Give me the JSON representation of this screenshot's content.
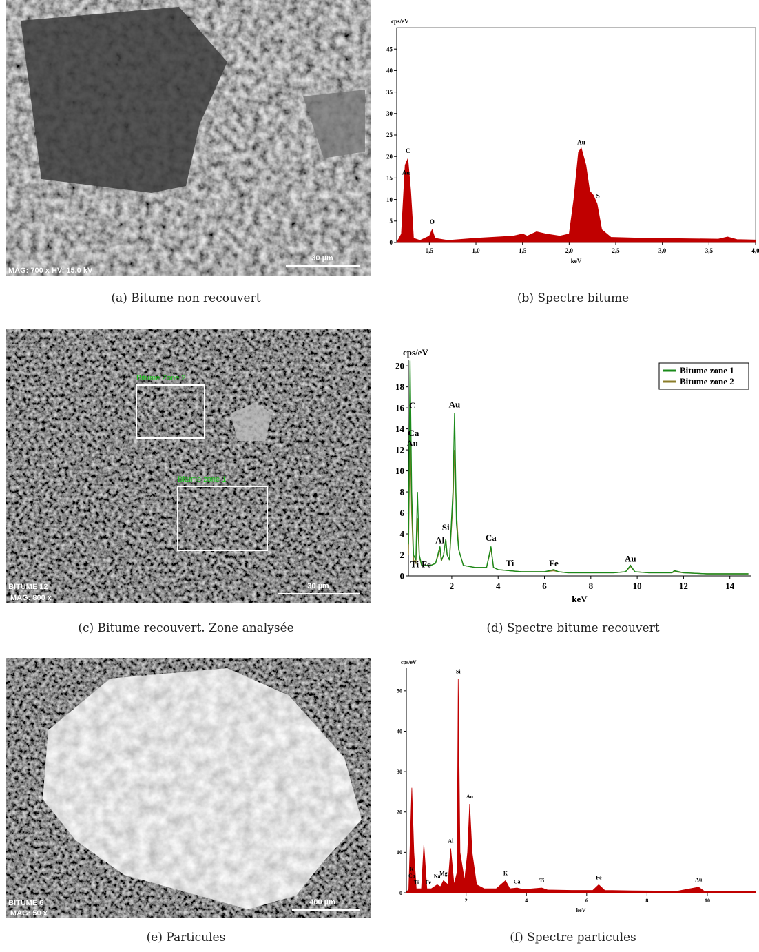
{
  "panels": [
    {
      "caption": "(a) Bitume non recouvert",
      "image_labels": [
        "MAG: 700 x  HV: 15.0 kV",
        "30 µm"
      ]
    },
    {
      "caption": "(b) Spectre bitume"
    },
    {
      "caption": "(c) Bitume recouvert. Zone analysée",
      "image_labels": [
        "BITUME 12",
        "MAG: 800 x",
        "30 µm",
        "Bitume Zone 2",
        "Bitume zone 1"
      ]
    },
    {
      "caption": "(d) Spectre bitume recouvert"
    },
    {
      "caption": "(e) Particules",
      "image_labels": [
        "BITUME 6",
        "MAG: 50 x",
        "400 µm"
      ]
    },
    {
      "caption": "(f) Spectre particules"
    }
  ],
  "chart_data": [
    {
      "type": "area",
      "x_label": "keV",
      "y_label": "cps/eV",
      "color": "#c00000",
      "x": [
        0.15,
        0.2,
        0.24,
        0.27,
        0.3,
        0.33,
        0.4,
        0.5,
        0.53,
        0.56,
        0.7,
        1.0,
        1.4,
        1.5,
        1.55,
        1.65,
        1.75,
        1.9,
        2.0,
        2.05,
        2.1,
        2.13,
        2.18,
        2.22,
        2.26,
        2.3,
        2.35,
        2.45,
        2.8,
        3.6,
        3.7,
        3.8,
        4.0
      ],
      "values": [
        0,
        2,
        18,
        19.5,
        12,
        1,
        0.5,
        1.5,
        3,
        1,
        0.5,
        1,
        1.5,
        2,
        1.5,
        2.5,
        2,
        1.5,
        2,
        10,
        21,
        22,
        18,
        12,
        11,
        9,
        3,
        1.2,
        1,
        0.8,
        1.3,
        0.7,
        0.6
      ],
      "xlim": [
        0.15,
        4.0
      ],
      "xticks": [
        {
          "value": 0.5,
          "label": "0,5"
        },
        {
          "value": 1.0,
          "label": "1,0"
        },
        {
          "value": 1.5,
          "label": "1,5"
        },
        {
          "value": 2.0,
          "label": "2,0"
        },
        {
          "value": 2.5,
          "label": "2,5"
        },
        {
          "value": 3.0,
          "label": "3,0"
        },
        {
          "value": 3.5,
          "label": "3,5"
        },
        {
          "value": 4.0,
          "label": "4,0"
        }
      ],
      "ylim": [
        0,
        50
      ],
      "yticks": [
        0,
        5,
        10,
        15,
        20,
        25,
        30,
        35,
        40,
        45
      ],
      "annotations": [
        {
          "text": "C",
          "x": 0.27,
          "y": 20.5
        },
        {
          "text": "Au",
          "x": 0.25,
          "y": 15.5
        },
        {
          "text": "O",
          "x": 0.53,
          "y": 4
        },
        {
          "text": "Au",
          "x": 2.13,
          "y": 22.5
        },
        {
          "text": "S",
          "x": 2.31,
          "y": 10
        }
      ]
    },
    {
      "type": "line",
      "x_label": "keV",
      "y_label": "cps/eV",
      "legend": "upper right",
      "x": [
        0.13,
        0.2,
        0.27,
        0.35,
        0.45,
        0.52,
        0.6,
        0.7,
        0.9,
        1.1,
        1.3,
        1.49,
        1.55,
        1.65,
        1.74,
        1.8,
        1.9,
        2.05,
        2.12,
        2.2,
        2.3,
        2.5,
        3.0,
        3.5,
        3.69,
        3.8,
        4.0,
        4.5,
        5.0,
        6.0,
        6.4,
        6.6,
        7,
        8,
        9,
        9.5,
        9.71,
        9.9,
        10.5,
        11.5,
        11.6,
        12,
        13,
        14,
        14.8
      ],
      "series": [
        {
          "name": "Bitume zone 1",
          "color": "#1a8a1a",
          "values": [
            3,
            20.5,
            8,
            2,
            1.5,
            8,
            2,
            1,
            1,
            1,
            1.2,
            2.8,
            1.5,
            2,
            3.5,
            2,
            1.5,
            8,
            15.5,
            5,
            2.5,
            1,
            0.8,
            0.8,
            2.8,
            0.8,
            0.6,
            0.5,
            0.4,
            0.4,
            0.6,
            0.4,
            0.3,
            0.3,
            0.3,
            0.4,
            1,
            0.4,
            0.3,
            0.3,
            0.5,
            0.3,
            0.2,
            0.2,
            0.2
          ]
        },
        {
          "name": "Bitume zone 2",
          "color": "#8b7d2a",
          "values": [
            2,
            14.5,
            6,
            1.5,
            1.2,
            5.5,
            1.8,
            1,
            1,
            1,
            1.2,
            2.5,
            1.4,
            2,
            3.5,
            2,
            1.5,
            7,
            12,
            6,
            2.5,
            1,
            0.8,
            0.8,
            2.6,
            0.8,
            0.6,
            0.5,
            0.4,
            0.4,
            0.5,
            0.4,
            0.3,
            0.3,
            0.3,
            0.4,
            0.9,
            0.4,
            0.3,
            0.3,
            0.4,
            0.3,
            0.2,
            0.2,
            0.2
          ]
        }
      ],
      "xlim": [
        0.13,
        14.9
      ],
      "xticks": [
        2,
        4,
        6,
        8,
        10,
        12,
        14
      ],
      "ylim": [
        0,
        20.6
      ],
      "yticks": [
        0,
        2,
        4,
        6,
        8,
        10,
        12,
        14,
        16,
        18,
        20
      ],
      "annotations": [
        {
          "text": "C",
          "x": 0.3,
          "y": 15.8
        },
        {
          "text": "Ca",
          "x": 0.35,
          "y": 13.2
        },
        {
          "text": "Au",
          "x": 0.3,
          "y": 12.2
        },
        {
          "text": "Au",
          "x": 2.12,
          "y": 15.9
        },
        {
          "text": "Si",
          "x": 1.74,
          "y": 4.2
        },
        {
          "text": "Al",
          "x": 1.49,
          "y": 3
        },
        {
          "text": "Ca",
          "x": 3.69,
          "y": 3.2
        },
        {
          "text": "Ti",
          "x": 4.51,
          "y": 0.8
        },
        {
          "text": "Fe",
          "x": 6.4,
          "y": 0.8
        },
        {
          "text": "Au",
          "x": 9.71,
          "y": 1.2
        },
        {
          "text": "Ti",
          "x": 0.4,
          "y": 0.7
        },
        {
          "text": "Fe",
          "x": 0.9,
          "y": 0.7
        }
      ]
    },
    {
      "type": "area",
      "x_label": "keV",
      "y_label": "cps/eV",
      "color": "#c00000",
      "x": [
        0.02,
        0.1,
        0.2,
        0.27,
        0.35,
        0.45,
        0.52,
        0.6,
        0.7,
        0.85,
        1.04,
        1.15,
        1.25,
        1.4,
        1.49,
        1.6,
        1.7,
        1.74,
        1.8,
        1.95,
        2.05,
        2.12,
        2.2,
        2.35,
        2.6,
        3.0,
        3.31,
        3.45,
        3.69,
        3.9,
        4.51,
        4.7,
        5.5,
        6.2,
        6.4,
        6.6,
        7.5,
        9.0,
        9.71,
        9.9,
        11.6
      ],
      "values": [
        0,
        1,
        26,
        10,
        1,
        1,
        1,
        12,
        1,
        1,
        2,
        1.5,
        3,
        2,
        11,
        2,
        5,
        53,
        10,
        3,
        10,
        22,
        10,
        2,
        1,
        1,
        3,
        1,
        1.2,
        0.8,
        1.2,
        0.7,
        0.6,
        0.6,
        2,
        0.6,
        0.5,
        0.4,
        1.4,
        0.4,
        0.3
      ],
      "xlim": [
        0.02,
        11.6
      ],
      "xticks": [
        2,
        4,
        6,
        8,
        10
      ],
      "ylim": [
        0,
        55.6
      ],
      "yticks": [
        0,
        10,
        20,
        30,
        40,
        50
      ],
      "annotations": [
        {
          "text": "Si",
          "x": 1.74,
          "y": 54
        },
        {
          "text": "Au",
          "x": 2.12,
          "y": 23
        },
        {
          "text": "Al",
          "x": 1.49,
          "y": 12
        },
        {
          "text": "Mg",
          "x": 1.25,
          "y": 4
        },
        {
          "text": "Na",
          "x": 1.04,
          "y": 3.3
        },
        {
          "text": "Fe",
          "x": 0.75,
          "y": 1.8
        },
        {
          "text": "K",
          "x": 0.2,
          "y": 5
        },
        {
          "text": "Ca",
          "x": 0.2,
          "y": 3.4
        },
        {
          "text": "Ti",
          "x": 0.35,
          "y": 1.8
        },
        {
          "text": "K",
          "x": 3.31,
          "y": 4
        },
        {
          "text": "Ca",
          "x": 3.69,
          "y": 2
        },
        {
          "text": "Ti",
          "x": 4.51,
          "y": 2.2
        },
        {
          "text": "Fe",
          "x": 6.4,
          "y": 3
        },
        {
          "text": "Au",
          "x": 9.71,
          "y": 2.5
        }
      ]
    }
  ]
}
